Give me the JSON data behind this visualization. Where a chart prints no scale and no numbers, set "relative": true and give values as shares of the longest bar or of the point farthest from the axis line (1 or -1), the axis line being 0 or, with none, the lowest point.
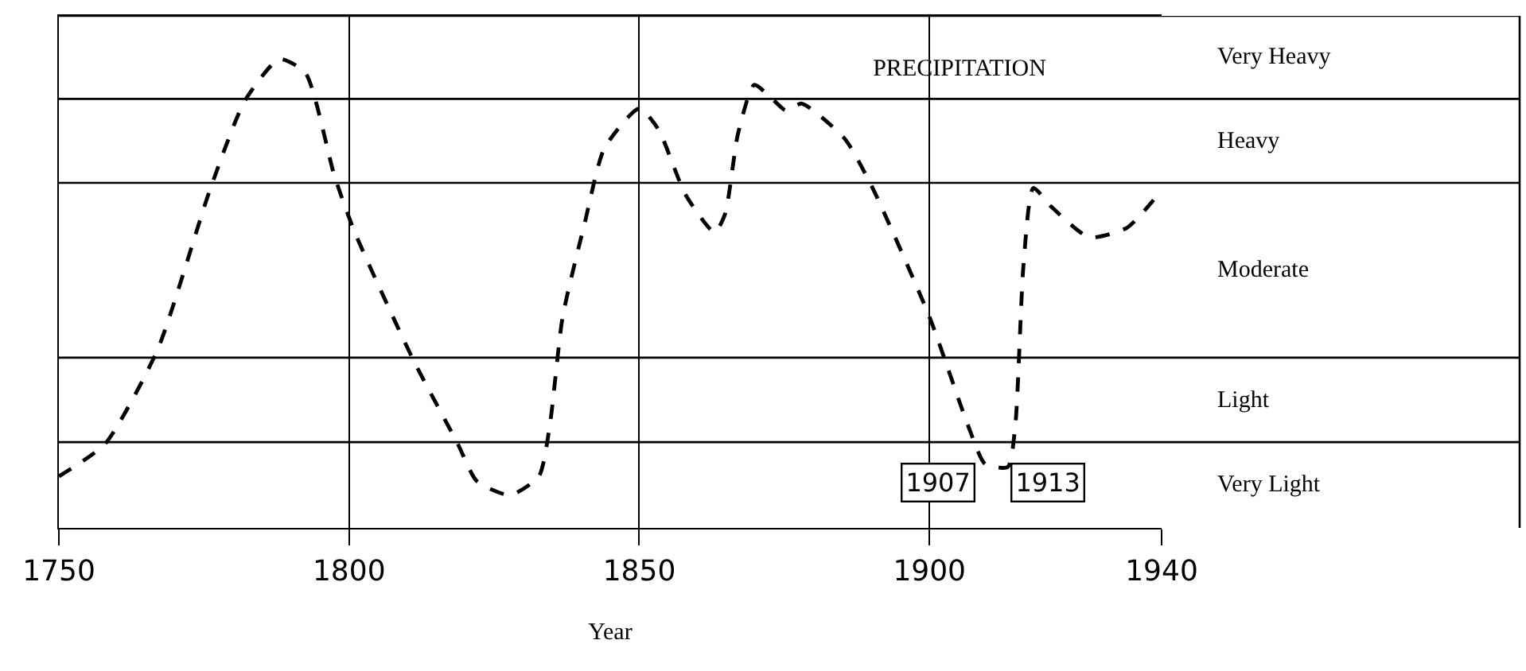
{
  "chart_data": {
    "type": "line",
    "title": "PRECIPITATION",
    "xlabel": "Year",
    "relative": true,
    "x": [
      1750,
      1758,
      1767,
      1776,
      1782,
      1788,
      1792.5,
      1797.5,
      1801,
      1811,
      1818.7,
      1822,
      1827.7,
      1832.7,
      1834.6,
      1836.8,
      1840.6,
      1844,
      1850,
      1853.3,
      1858,
      1863,
      1864.8,
      1867,
      1869.8,
      1872.5,
      1875.3,
      1878,
      1885.4,
      1890,
      1900,
      1906.6,
      1909.6,
      1913.5,
      1914.8,
      1916.2,
      1917.9,
      1921,
      1927.5,
      1934,
      1940
    ],
    "series": [
      {
        "color": "#000000",
        "values": [
          0.11,
          0.18,
          0.38,
          0.72,
          0.91,
          1.0,
          0.97,
          0.75,
          0.63,
          0.36,
          0.18,
          0.1,
          0.07,
          0.11,
          0.22,
          0.45,
          0.65,
          0.81,
          0.895,
          0.85,
          0.71,
          0.63,
          0.67,
          0.84,
          0.945,
          0.92,
          0.89,
          0.905,
          0.83,
          0.73,
          0.45,
          0.22,
          0.136,
          0.13,
          0.22,
          0.56,
          0.725,
          0.685,
          0.62,
          0.64,
          0.72
        ]
      }
    ],
    "xlim": [
      1750,
      1940
    ],
    "xticks": [
      1750,
      1800,
      1850,
      1900,
      1940
    ],
    "ref_lines": [
      {
        "axis": "y",
        "value": 1.092
      },
      {
        "axis": "y",
        "value": 0.915
      },
      {
        "axis": "y",
        "value": 0.736
      },
      {
        "axis": "y",
        "value": 0.363
      },
      {
        "axis": "y",
        "value": 0.183
      }
    ],
    "annotations": [
      "Very Heavy",
      "Heavy",
      "Moderate",
      "Light",
      "Very Light",
      "1907",
      "1913"
    ],
    "grid": "x",
    "marker": "none",
    "line_style": "dashed"
  }
}
